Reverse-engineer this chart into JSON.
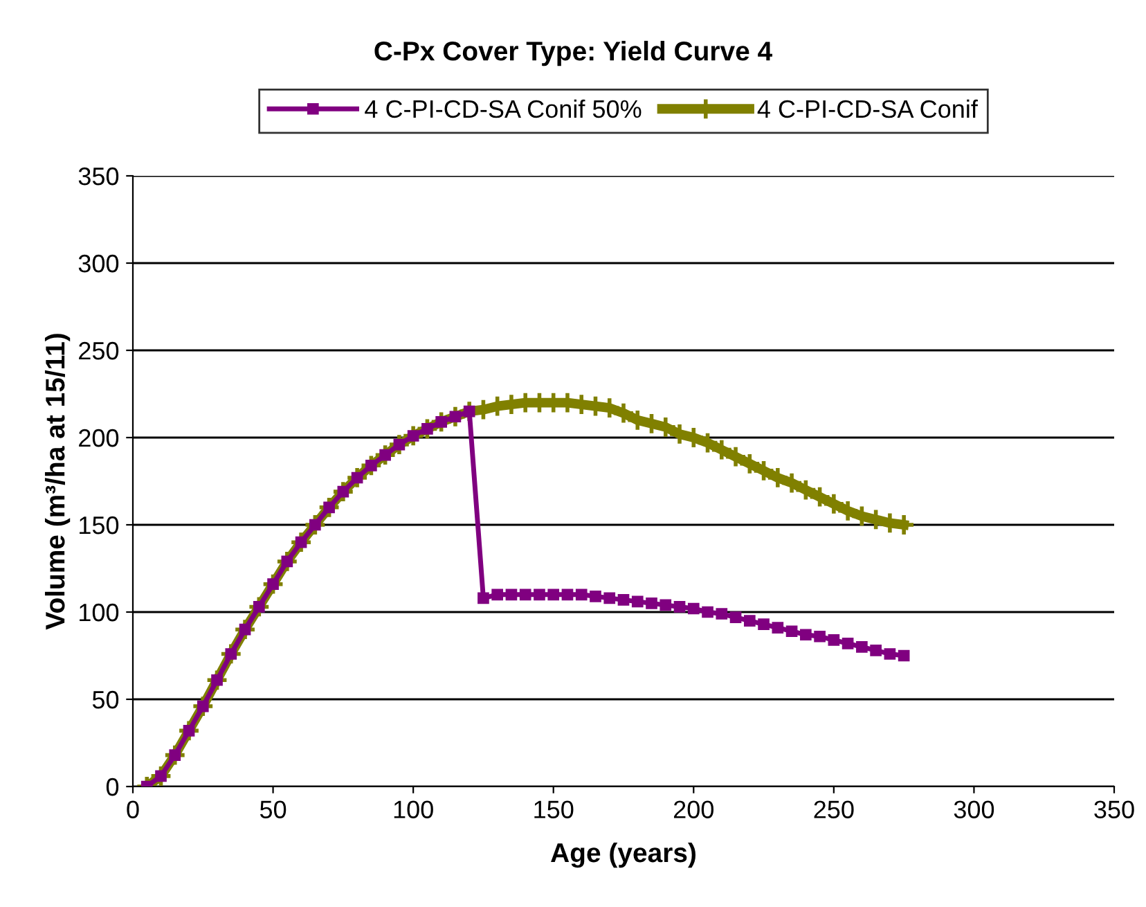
{
  "chart_data": {
    "type": "line",
    "title": "C-Px Cover Type: Yield Curve 4",
    "xlabel": "Age (years)",
    "ylabel": "Volume (m³/ha at 15/11)",
    "x": [
      5,
      10,
      15,
      20,
      25,
      30,
      35,
      40,
      45,
      50,
      55,
      60,
      65,
      70,
      75,
      80,
      85,
      90,
      95,
      100,
      105,
      110,
      115,
      120,
      125,
      130,
      135,
      140,
      145,
      150,
      155,
      160,
      165,
      170,
      175,
      180,
      185,
      190,
      195,
      200,
      205,
      210,
      215,
      220,
      225,
      230,
      235,
      240,
      245,
      250,
      255,
      260,
      265,
      270,
      275
    ],
    "series": [
      {
        "name": "4 C-PI-CD-SA Conif 50%",
        "color": "#800080",
        "marker": "square",
        "values": [
          0,
          6,
          18,
          32,
          46,
          61,
          76,
          90,
          103,
          116,
          129,
          140,
          150,
          160,
          169,
          177,
          184,
          190,
          196,
          201,
          205,
          209,
          212,
          215,
          108,
          110,
          110,
          110,
          110,
          110,
          110,
          110,
          109,
          108,
          107,
          106,
          105,
          104,
          103,
          102,
          100,
          99,
          97,
          95,
          93,
          91,
          89,
          87,
          86,
          84,
          82,
          80,
          78,
          76,
          75
        ]
      },
      {
        "name": "4 C-PI-CD-SA Conif",
        "color": "#808000",
        "marker": "cross",
        "values": [
          0,
          6,
          18,
          32,
          46,
          61,
          76,
          90,
          103,
          116,
          129,
          140,
          150,
          160,
          169,
          177,
          184,
          190,
          196,
          201,
          205,
          209,
          212,
          215,
          216,
          218,
          219,
          220,
          220,
          220,
          220,
          219,
          218,
          217,
          214,
          210,
          208,
          206,
          202,
          200,
          197,
          193,
          189,
          185,
          181,
          177,
          174,
          170,
          166,
          162,
          158,
          155,
          153,
          151,
          150
        ]
      }
    ],
    "xlim": [
      0,
      350
    ],
    "xticks": [
      0,
      50,
      100,
      150,
      200,
      250,
      300,
      350
    ],
    "ylim": [
      0,
      350
    ],
    "yticks": [
      0,
      50,
      100,
      150,
      200,
      250,
      300,
      350
    ],
    "grid": "y",
    "legend": "top",
    "line_style": "solid"
  }
}
